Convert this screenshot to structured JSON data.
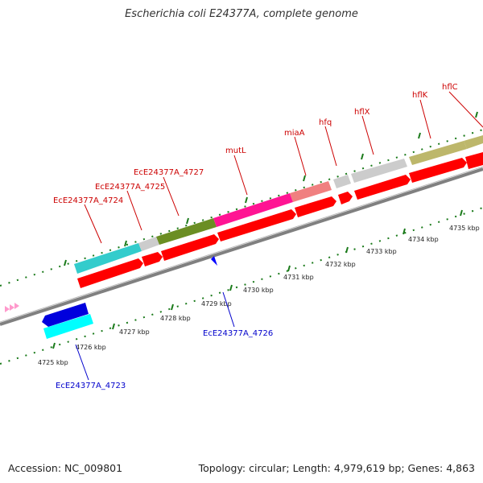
{
  "title": "Escherichia coli E24377A, complete genome",
  "accession": "Accession: NC_009801",
  "stats": "Topology: circular; Length: 4,979,619 bp; Genes: 4,863",
  "colors": {
    "cds": "#ff0000",
    "backbone": "#808080",
    "tick": "#1a7a1a",
    "label_fwd": "#cc0000",
    "label_rev": "#0000cc"
  },
  "scale_labels": [
    "4725 kbp",
    "4726 kbp",
    "4727 kbp",
    "4728 kbp",
    "4729 kbp",
    "4730 kbp",
    "4731 kbp",
    "4732 kbp",
    "4733 kbp",
    "4734 kbp",
    "4735 kbp"
  ],
  "gene_labels_forward": [
    "EcE24377A_4724",
    "EcE24377A_4725",
    "EcE24377A_4727",
    "mutL",
    "miaA",
    "hfq",
    "hflX",
    "hflK",
    "hflC"
  ],
  "gene_labels_reverse": [
    "EcE24377A_4726",
    "EcE24377A_4723"
  ]
}
